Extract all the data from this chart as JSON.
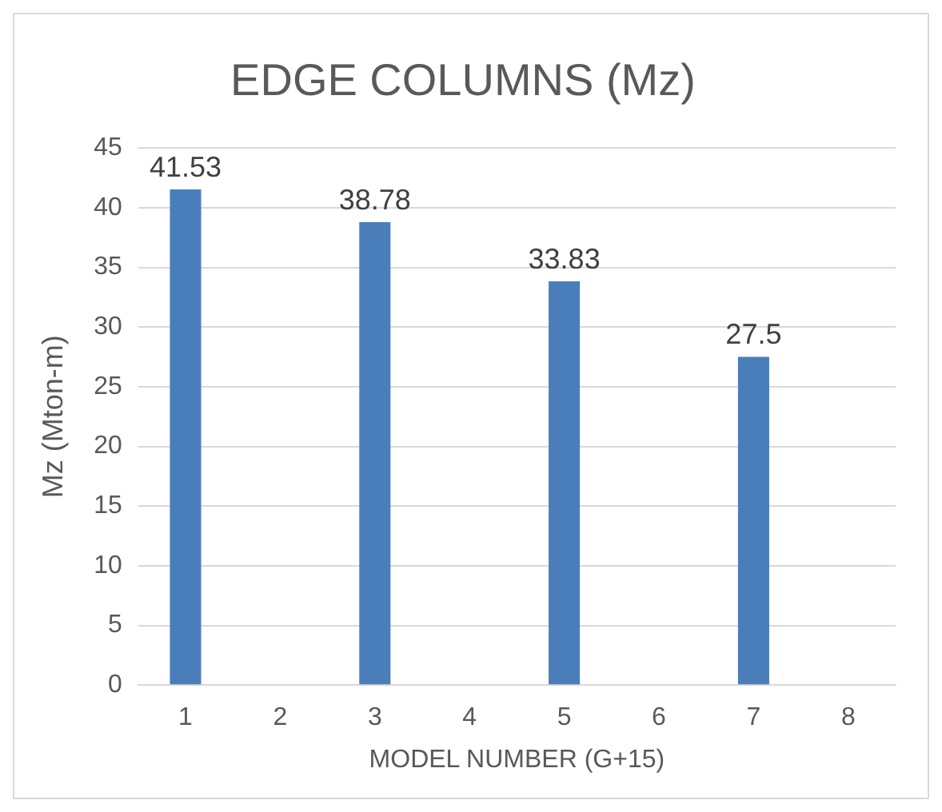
{
  "chart_data": {
    "type": "bar",
    "title": "EDGE COLUMNS (Mz)",
    "xlabel": "MODEL NUMBER (G+15)",
    "ylabel": "Mz (Mton-m)",
    "categories": [
      "1",
      "2",
      "3",
      "4",
      "5",
      "6",
      "7",
      "8"
    ],
    "values": [
      41.53,
      null,
      38.78,
      null,
      33.83,
      null,
      27.5,
      null
    ],
    "color": "#4a7ebb",
    "ylim": [
      0,
      45
    ],
    "yticks": [
      0,
      5,
      10,
      15,
      20,
      25,
      30,
      35,
      40,
      45
    ],
    "grid": "y",
    "legend": false,
    "data_labels": true
  }
}
